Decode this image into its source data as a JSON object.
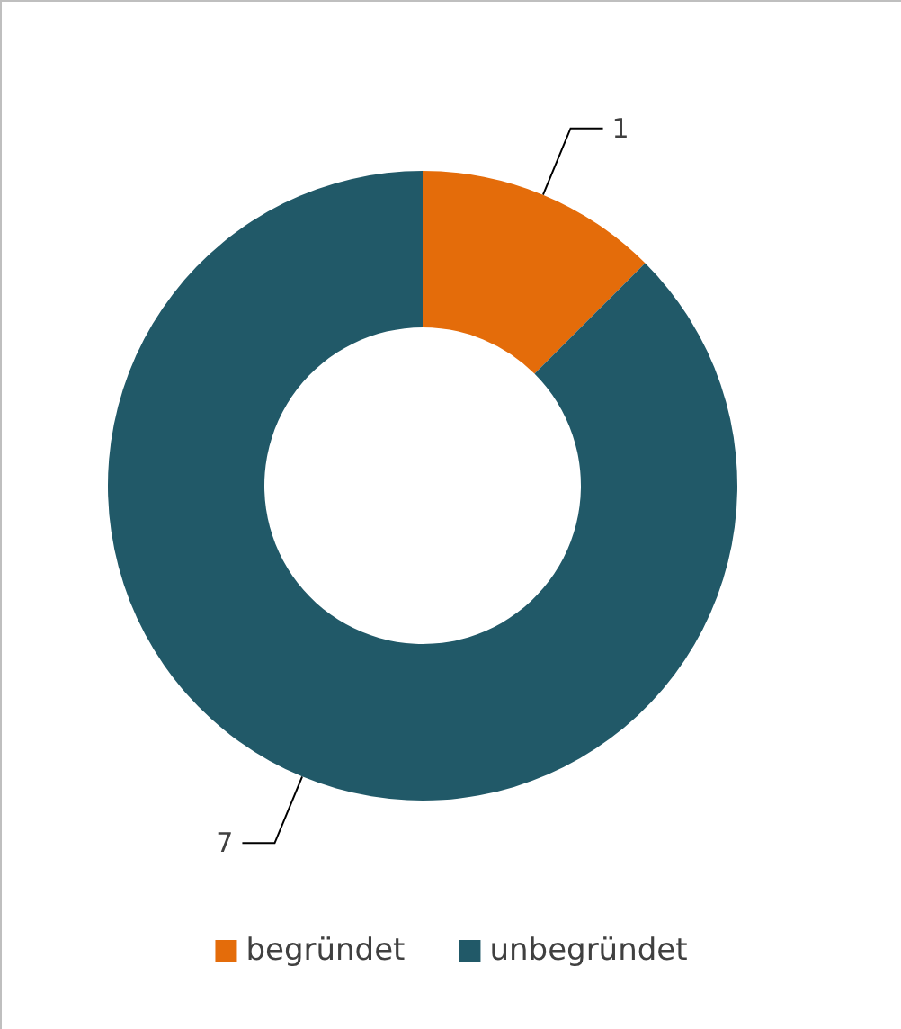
{
  "chart_data": {
    "type": "donut",
    "categories": [
      "begründet",
      "unbegründet"
    ],
    "values": [
      1,
      7
    ],
    "colors": [
      "#e46c0a",
      "#215968"
    ],
    "data_labels": true,
    "legend": "bottom"
  }
}
